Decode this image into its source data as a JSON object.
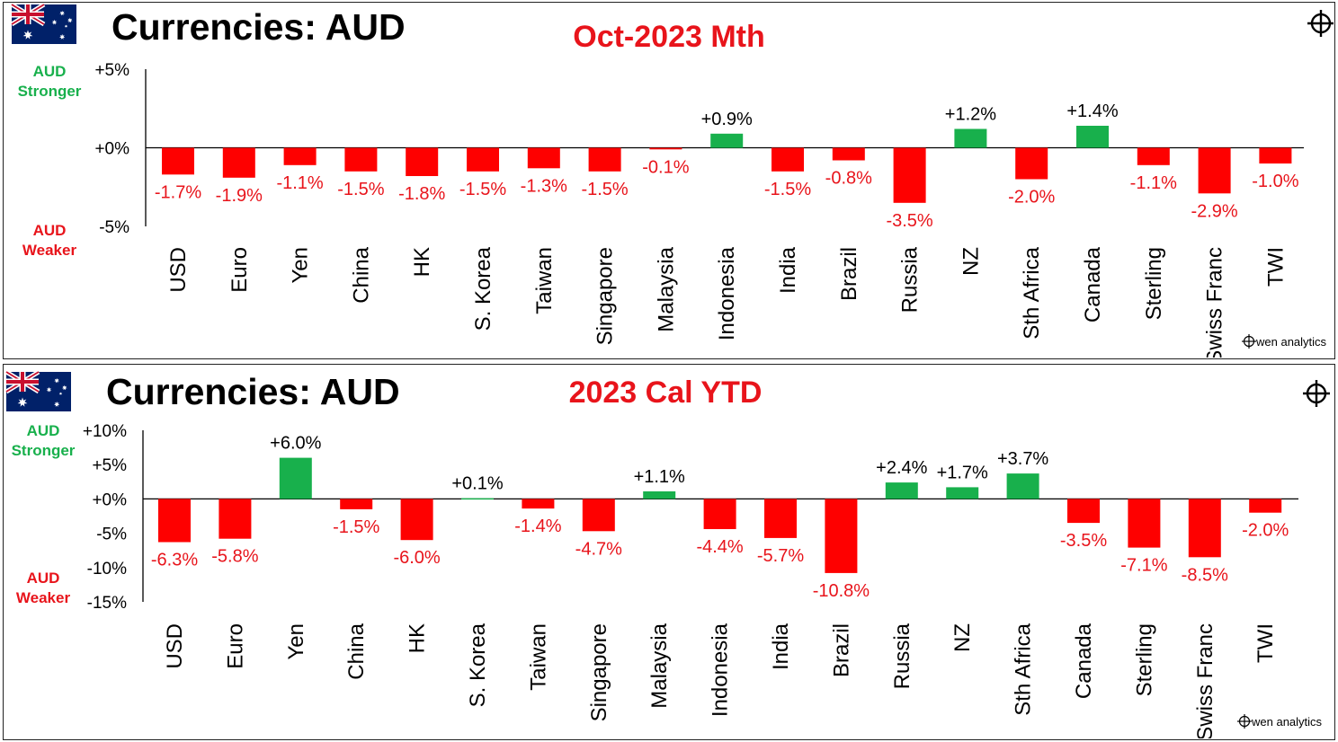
{
  "panels": [
    {
      "title": "Currencies: AUD",
      "subtitle": "Oct-2023 Mth",
      "stronger_label": [
        "AUD",
        "Stronger"
      ],
      "weaker_label": [
        "AUD",
        "Weaker"
      ],
      "credit": "wen analytics",
      "chart_data": {
        "type": "bar",
        "title": "Oct-2023 Mth",
        "categories": [
          "USD",
          "Euro",
          "Yen",
          "China",
          "HK",
          "S. Korea",
          "Taiwan",
          "Singapore",
          "Malaysia",
          "Indonesia",
          "India",
          "Brazil",
          "Russia",
          "NZ",
          "Sth Africa",
          "Canada",
          "Sterling",
          "Swiss Franc",
          "TWI"
        ],
        "values": [
          -1.7,
          -1.9,
          -1.1,
          -1.5,
          -1.8,
          -1.5,
          -1.3,
          -1.5,
          -0.1,
          0.9,
          -1.5,
          -0.8,
          -3.5,
          1.2,
          -2.0,
          1.4,
          -1.1,
          -2.9,
          -1.0
        ],
        "data_labels": [
          "-1.7%",
          "-1.9%",
          "-1.1%",
          "-1.5%",
          "-1.8%",
          "-1.5%",
          "-1.3%",
          "-1.5%",
          "-0.1%",
          "+0.9%",
          "-1.5%",
          "-0.8%",
          "-3.5%",
          "+1.2%",
          "-2.0%",
          "+1.4%",
          "-1.1%",
          "-2.9%",
          "-1.0%"
        ],
        "yticks": [
          5,
          0,
          -5
        ],
        "ytick_labels": [
          "+5%",
          "+0%",
          "-5%"
        ],
        "ylim": [
          -5,
          5
        ],
        "colors": {
          "positive": "#18b04c",
          "negative": "#fe0000"
        }
      }
    },
    {
      "title": "Currencies: AUD",
      "subtitle": "2023 Cal YTD",
      "stronger_label": [
        "AUD",
        "Stronger"
      ],
      "weaker_label": [
        "AUD",
        "Weaker"
      ],
      "credit": "wen analytics",
      "chart_data": {
        "type": "bar",
        "title": "2023 Cal YTD",
        "categories": [
          "USD",
          "Euro",
          "Yen",
          "China",
          "HK",
          "S. Korea",
          "Taiwan",
          "Singapore",
          "Malaysia",
          "Indonesia",
          "India",
          "Brazil",
          "Russia",
          "NZ",
          "Sth Africa",
          "Canada",
          "Sterling",
          "Swiss Franc",
          "TWI"
        ],
        "values": [
          -6.3,
          -5.8,
          6.0,
          -1.5,
          -6.0,
          0.1,
          -1.4,
          -4.7,
          1.1,
          -4.4,
          -5.7,
          -10.8,
          2.4,
          1.7,
          3.7,
          -3.5,
          -7.1,
          -8.5,
          -2.0
        ],
        "data_labels": [
          "-6.3%",
          "-5.8%",
          "+6.0%",
          "-1.5%",
          "-6.0%",
          "+0.1%",
          "-1.4%",
          "-4.7%",
          "+1.1%",
          "-4.4%",
          "-5.7%",
          "-10.8%",
          "+2.4%",
          "+1.7%",
          "+3.7%",
          "-3.5%",
          "-7.1%",
          "-8.5%",
          "-2.0%"
        ],
        "yticks": [
          10,
          5,
          0,
          -5,
          -10,
          -15
        ],
        "ytick_labels": [
          "+10%",
          "+5%",
          "+0%",
          "-5%",
          "-10%",
          "-15%"
        ],
        "ylim": [
          -15,
          10
        ],
        "colors": {
          "positive": "#18b04c",
          "negative": "#fe0000"
        }
      }
    }
  ]
}
